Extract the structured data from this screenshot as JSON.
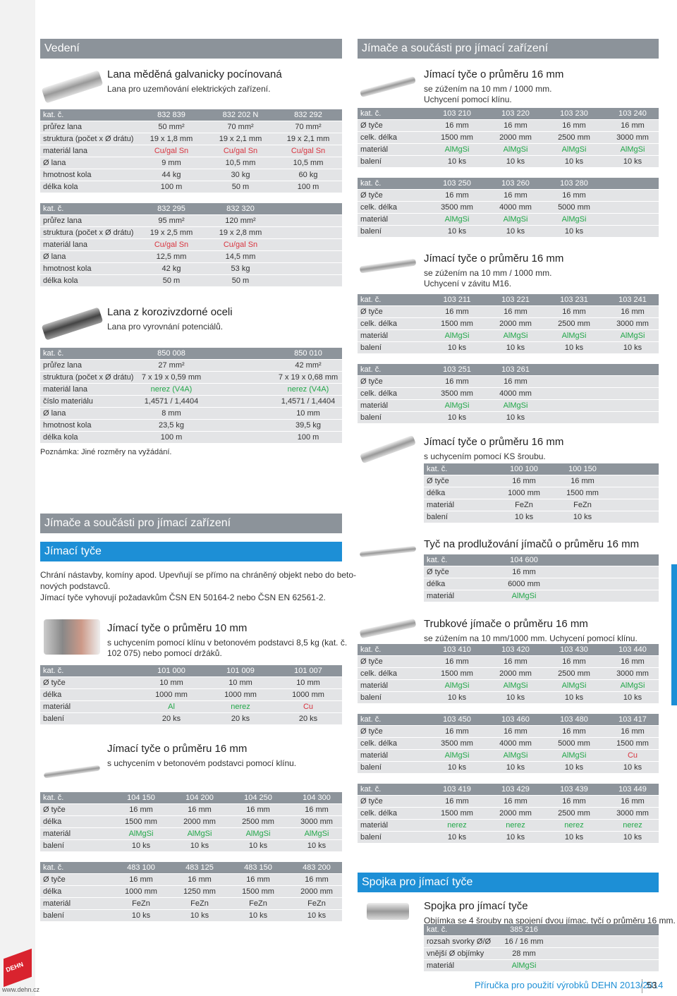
{
  "left": [
    {
      "heading": "Vedení",
      "color": "#8c939a"
    },
    {
      "title": "Lana měděná galvanicky pocínovaná",
      "subtitle": [
        "Lana pro uzemňování elektrických zařízení."
      ]
    },
    {
      "rows": [
        [
          "kat. č.",
          "832 839",
          "832 202 N",
          "832 292"
        ],
        [
          "průřez lana",
          "50 mm²",
          "70 mm²",
          "70 mm²"
        ],
        [
          "struktura (počet x Ø drátu)",
          "19 x 1,8 mm",
          "19 x 2,1 mm",
          "19 x 2,1 mm"
        ],
        [
          "materiál lana",
          {
            "text": "Cu/gal Sn",
            "color": "#d8343f"
          },
          {
            "text": "Cu/gal Sn",
            "color": "#d8343f"
          },
          {
            "text": "Cu/gal Sn",
            "color": "#d8343f"
          }
        ],
        [
          "Ø lana",
          "9 mm",
          "10,5 mm",
          "10,5 mm"
        ],
        [
          "hmotnost kola",
          "44 kg",
          "30 kg",
          "60 kg"
        ],
        [
          "délka kola",
          "100 m",
          "50 m",
          "100 m"
        ]
      ]
    },
    {
      "rows": [
        [
          "kat. č.",
          "832 295",
          "832 320"
        ],
        [
          "průřez lana",
          "95 mm²",
          "120 mm²"
        ],
        [
          "struktura (počet x Ø drátu)",
          "19 x 2,5 mm",
          "19 x 2,8 mm"
        ],
        [
          "materiál lana",
          {
            "text": "Cu/gal Sn",
            "color": "#d8343f"
          },
          {
            "text": "Cu/gal Sn",
            "color": "#d8343f"
          }
        ],
        [
          "Ø lana",
          "12,5 mm",
          "14,5 mm"
        ],
        [
          "hmotnost kola",
          "42 kg",
          "53 kg"
        ],
        [
          "délka kola",
          "50 m",
          "50 m"
        ]
      ]
    },
    {
      "title": "Lana z korozivzdorné oceli",
      "subtitle": [
        "Lana pro vyrovnání potenciálů."
      ]
    },
    {
      "rows": [
        [
          "kat. č.",
          "850 008",
          "850 010"
        ],
        [
          "průřez lana",
          "27 mm²",
          "42 mm²"
        ],
        [
          "struktura (počet x Ø drátu)",
          "7 x 19 x 0,59 mm",
          "7 x 19 x 0,68 mm"
        ],
        [
          "materiál lana",
          {
            "text": "nerez (V4A)",
            "color": "#23a84a"
          },
          {
            "text": "nerez (V4A)",
            "color": "#23a84a"
          }
        ],
        [
          "číslo materiálu",
          "1,4571 / 1,4404",
          "1,4571 / 1,4404"
        ],
        [
          "Ø lana",
          "8 mm",
          "10 mm"
        ],
        [
          "hmotnost kola",
          "23,5 kg",
          "39,5 kg"
        ],
        [
          "délka kola",
          "100 m",
          "100 m"
        ]
      ]
    },
    {
      "note": "Poznámka: Jiné rozměry na vyžádání."
    },
    {
      "heading": "Jímače a součásti pro jímací zařízení",
      "color": "#8c939a"
    },
    {
      "heading": "Jímací tyče",
      "color": "#1d8fd6"
    },
    {
      "lines": [
        "Chrání nástavby, komíny apod. Upevňují se přímo na chráněný objekt nebo do beto-",
        "nových podstavců.",
        "Jímací tyče vyhovují požadavkům ČSN EN 50164-2 nebo ČSN EN 62561-2."
      ]
    },
    {
      "title": "Jímací tyče o průměru 10 mm",
      "subtitle": [
        "s uchycením pomocí klínu v betonovém podstavci 8,5 kg (kat. č.",
        "102 075) nebo pomocí držáků."
      ]
    },
    {
      "rows": [
        [
          "kat. č.",
          "101 000",
          "101 009",
          "101 007"
        ],
        [
          "Ø tyče",
          "10 mm",
          "10 mm",
          "10 mm"
        ],
        [
          "délka",
          "1000 mm",
          "1000 mm",
          "1000 mm"
        ],
        [
          "materiál",
          {
            "text": "Al",
            "color": "#23a84a"
          },
          {
            "text": "nerez",
            "color": "#23a84a"
          },
          {
            "text": "Cu",
            "color": "#d8343f"
          }
        ],
        [
          "balení",
          "20 ks",
          "20 ks",
          "20 ks"
        ]
      ]
    },
    {
      "title": "Jímací tyče o průměru 16 mm",
      "subtitle": [
        "s uchycením v betonovém podstavci pomocí klínu."
      ]
    },
    {
      "rows": [
        [
          "kat. č.",
          "104 150",
          "104 200",
          "104 250",
          "104 300"
        ],
        [
          "Ø tyče",
          "16 mm",
          "16 mm",
          "16 mm",
          "16 mm"
        ],
        [
          "délka",
          "1500 mm",
          "2000 mm",
          "2500 mm",
          "3000 mm"
        ],
        [
          "materiál",
          {
            "text": "AlMgSi",
            "color": "#23a84a"
          },
          {
            "text": "AlMgSi",
            "color": "#23a84a"
          },
          {
            "text": "AlMgSi",
            "color": "#23a84a"
          },
          {
            "text": "AlMgSi",
            "color": "#23a84a"
          }
        ],
        [
          "balení",
          "10 ks",
          "10 ks",
          "10 ks",
          "10 ks"
        ]
      ]
    },
    {
      "rows": [
        [
          "kat. č.",
          "483 100",
          "483 125",
          "483 150",
          "483 200"
        ],
        [
          "Ø tyče",
          "16 mm",
          "16 mm",
          "16 mm",
          "16 mm"
        ],
        [
          "délka",
          "1000 mm",
          "1250 mm",
          "1500 mm",
          "2000 mm"
        ],
        [
          "materiál",
          "FeZn",
          "FeZn",
          "FeZn",
          "FeZn"
        ],
        [
          "balení",
          "10 ks",
          "10 ks",
          "10 ks",
          "10 ks"
        ]
      ]
    }
  ],
  "right": [
    {
      "heading": "Jímače a součásti pro jímací zařízení",
      "color": "#8c939a"
    },
    {
      "title": "Jímací tyče o průměru 16 mm",
      "subtitle": [
        "se zúžením na 10 mm / 1000 mm.",
        "Uchycení pomocí klínu."
      ]
    },
    {
      "rows": [
        [
          "kat. č.",
          "103 210",
          "103 220",
          "103 230",
          "103 240"
        ],
        [
          "Ø tyče",
          "16 mm",
          "16 mm",
          "16 mm",
          "16 mm"
        ],
        [
          "celk. délka",
          "1500 mm",
          "2000 mm",
          "2500 mm",
          "3000 mm"
        ],
        [
          "materiál",
          {
            "text": "AlMgSi",
            "color": "#23a84a"
          },
          {
            "text": "AlMgSi",
            "color": "#23a84a"
          },
          {
            "text": "AlMgSi",
            "color": "#23a84a"
          },
          {
            "text": "AlMgSi",
            "color": "#23a84a"
          }
        ],
        [
          "balení",
          "10 ks",
          "10 ks",
          "10 ks",
          "10 ks"
        ]
      ]
    },
    {
      "rows": [
        [
          "kat. č.",
          "103 250",
          "103 260",
          "103 280"
        ],
        [
          "Ø tyče",
          "16 mm",
          "16 mm",
          "16 mm"
        ],
        [
          "celk. délka",
          "3500 mm",
          "4000 mm",
          "5000 mm"
        ],
        [
          "materiál",
          {
            "text": "AlMgSi",
            "color": "#23a84a"
          },
          {
            "text": "AlMgSi",
            "color": "#23a84a"
          },
          {
            "text": "AlMgSi",
            "color": "#23a84a"
          }
        ],
        [
          "balení",
          "10 ks",
          "10 ks",
          "10 ks"
        ]
      ]
    },
    {
      "title": "Jímací tyče o průměru 16 mm",
      "subtitle": [
        "se zúžením na 10 mm / 1000 mm.",
        "Uchycení v závitu M16."
      ]
    },
    {
      "rows": [
        [
          "kat. č.",
          "103 211",
          "103 221",
          "103 231",
          "103 241"
        ],
        [
          "Ø tyče",
          "16 mm",
          "16 mm",
          "16 mm",
          "16 mm"
        ],
        [
          "celk. délka",
          "1500 mm",
          "2000 mm",
          "2500 mm",
          "3000 mm"
        ],
        [
          "materiál",
          {
            "text": "AlMgSi",
            "color": "#23a84a"
          },
          {
            "text": "AlMgSi",
            "color": "#23a84a"
          },
          {
            "text": "AlMgSi",
            "color": "#23a84a"
          },
          {
            "text": "AlMgSi",
            "color": "#23a84a"
          }
        ],
        [
          "balení",
          "10 ks",
          "10 ks",
          "10 ks",
          "10 ks"
        ]
      ]
    },
    {
      "rows": [
        [
          "kat. č.",
          "103 251",
          "103 261"
        ],
        [
          "Ø tyče",
          "16 mm",
          "16 mm"
        ],
        [
          "celk. délka",
          "3500 mm",
          "4000 mm"
        ],
        [
          "materiál",
          {
            "text": "AlMgSi",
            "color": "#23a84a"
          },
          {
            "text": "AlMgSi",
            "color": "#23a84a"
          }
        ],
        [
          "balení",
          "10 ks",
          "10 ks"
        ]
      ]
    },
    {
      "title": "Jímací tyče o průměru 16 mm",
      "subtitle": [
        "s uchycením pomocí KS šroubu."
      ]
    },
    {
      "rows": [
        [
          "kat. č.",
          "100 100",
          "100 150"
        ],
        [
          "Ø tyče",
          "16 mm",
          "16 mm"
        ],
        [
          "délka",
          "1000 mm",
          "1500 mm"
        ],
        [
          "materiál",
          "FeZn",
          "FeZn"
        ],
        [
          "balení",
          "10 ks",
          "10 ks"
        ]
      ]
    },
    {
      "title": "Tyč na prodlužování jímačů o průměru 16 mm"
    },
    {
      "rows": [
        [
          "kat. č.",
          "104 600"
        ],
        [
          "Ø tyče",
          "16 mm"
        ],
        [
          "délka",
          "6000 mm"
        ],
        [
          "materiál",
          {
            "text": "AlMgSi",
            "color": "#23a84a"
          }
        ]
      ]
    },
    {
      "title": "Trubkové jímače o průměru 16 mm",
      "subtitle": [
        "se zúžením na 10 mm/1000 mm. Uchycení pomocí klínu."
      ]
    },
    {
      "rows": [
        [
          "kat. č.",
          "103 410",
          "103 420",
          "103 430",
          "103 440"
        ],
        [
          "Ø tyče",
          "16 mm",
          "16 mm",
          "16 mm",
          "16 mm"
        ],
        [
          "celk. délka",
          "1500 mm",
          "2000 mm",
          "2500 mm",
          "3000 mm"
        ],
        [
          "materiál",
          {
            "text": "AlMgSi",
            "color": "#23a84a"
          },
          {
            "text": "AlMgSi",
            "color": "#23a84a"
          },
          {
            "text": "AlMgSi",
            "color": "#23a84a"
          },
          {
            "text": "AlMgSi",
            "color": "#23a84a"
          }
        ],
        [
          "balení",
          "10 ks",
          "10 ks",
          "10 ks",
          "10 ks"
        ]
      ]
    },
    {
      "rows": [
        [
          "kat. č.",
          "103 450",
          "103 460",
          "103 480",
          "103 417"
        ],
        [
          "Ø tyče",
          "16 mm",
          "16 mm",
          "16 mm",
          "16 mm"
        ],
        [
          "celk. délka",
          "3500 mm",
          "4000 mm",
          "5000 mm",
          "1500 mm"
        ],
        [
          "materiál",
          {
            "text": "AlMgSi",
            "color": "#23a84a"
          },
          {
            "text": "AlMgSi",
            "color": "#23a84a"
          },
          {
            "text": "AlMgSi",
            "color": "#23a84a"
          },
          {
            "text": "Cu",
            "color": "#d8343f"
          }
        ],
        [
          "balení",
          "10 ks",
          "10 ks",
          "10 ks",
          "10 ks"
        ]
      ]
    },
    {
      "rows": [
        [
          "kat. č.",
          "103 419",
          "103 429",
          "103 439",
          "103 449"
        ],
        [
          "Ø tyče",
          "16 mm",
          "16 mm",
          "16 mm",
          "16 mm"
        ],
        [
          "celk. délka",
          "1500 mm",
          "2000 mm",
          "2500 mm",
          "3000 mm"
        ],
        [
          "materiál",
          {
            "text": "nerez",
            "color": "#23a84a"
          },
          {
            "text": "nerez",
            "color": "#23a84a"
          },
          {
            "text": "nerez",
            "color": "#23a84a"
          },
          {
            "text": "nerez",
            "color": "#23a84a"
          }
        ],
        [
          "balení",
          "10 ks",
          "10 ks",
          "10 ks",
          "10 ks"
        ]
      ]
    },
    {
      "heading": "Spojka pro jímací tyče",
      "color": "#1d8fd6"
    },
    {
      "title": "Spojka pro jímací tyče",
      "subtitle": [
        "Objímka se 4 šrouby na spojení dvou jímac. tyčí o průměru 16 mm."
      ]
    },
    {
      "rows": [
        [
          "kat. č.",
          "385 216"
        ],
        [
          "rozsah svorky Ø/Ø",
          "16 / 16 mm"
        ],
        [
          "vnější Ø objímky",
          "28 mm"
        ],
        [
          "materiál",
          {
            "text": "AlMgSi",
            "color": "#23a84a"
          }
        ]
      ]
    }
  ],
  "footer": {
    "publication": "Příručka pro použití výrobků DEHN 2013/2014",
    "page": "53",
    "website": "www.dehn.cz",
    "logo": "DEHN"
  }
}
